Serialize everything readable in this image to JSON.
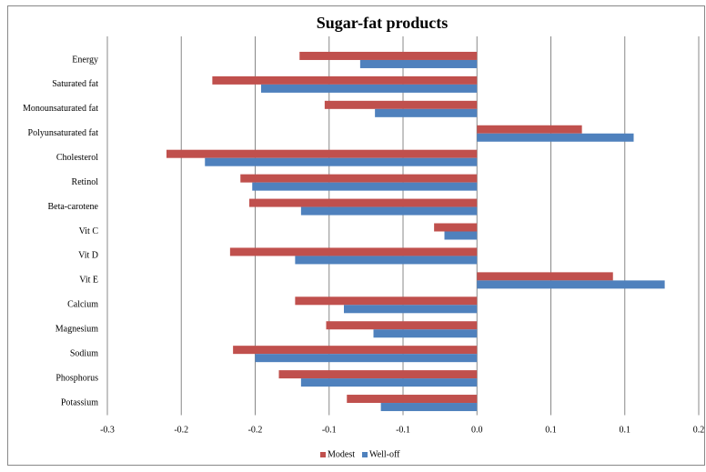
{
  "chart_data": {
    "type": "bar",
    "orientation": "horizontal",
    "title": "Sugar-fat products",
    "categories": [
      "Energy",
      "Saturated fat",
      "Monounsaturated fat",
      "Polyunsaturated fat",
      "Cholesterol",
      "Retinol",
      "Beta-carotene",
      "Vit C",
      "Vit D",
      "Vit E",
      "Calcium",
      "Magnesium",
      "Sodium",
      "Phosphorus",
      "Potassium"
    ],
    "series": [
      {
        "name": "Modest",
        "color": "#c0504d",
        "values": [
          -0.12,
          -0.179,
          -0.103,
          0.071,
          -0.21,
          -0.16,
          -0.154,
          -0.029,
          -0.167,
          0.092,
          -0.123,
          -0.102,
          -0.165,
          -0.134,
          -0.088
        ]
      },
      {
        "name": "Well-off",
        "color": "#4f81bd",
        "values": [
          -0.079,
          -0.146,
          -0.069,
          0.106,
          -0.184,
          -0.152,
          -0.119,
          -0.022,
          -0.123,
          0.127,
          -0.09,
          -0.07,
          -0.15,
          -0.119,
          -0.065
        ]
      }
    ],
    "xlim": [
      -0.25,
      0.15
    ],
    "xticks": [
      {
        "value": -0.25,
        "label": "-0.3"
      },
      {
        "value": -0.2,
        "label": "-0.2"
      },
      {
        "value": -0.15,
        "label": "-0.2"
      },
      {
        "value": -0.1,
        "label": "-0.1"
      },
      {
        "value": -0.05,
        "label": "-0.1"
      },
      {
        "value": 0,
        "label": "0.0"
      },
      {
        "value": 0.05,
        "label": "0.1"
      },
      {
        "value": 0.1,
        "label": "0.1"
      },
      {
        "value": 0.15,
        "label": "0.2"
      }
    ],
    "grid": true,
    "legend": "bottom"
  }
}
